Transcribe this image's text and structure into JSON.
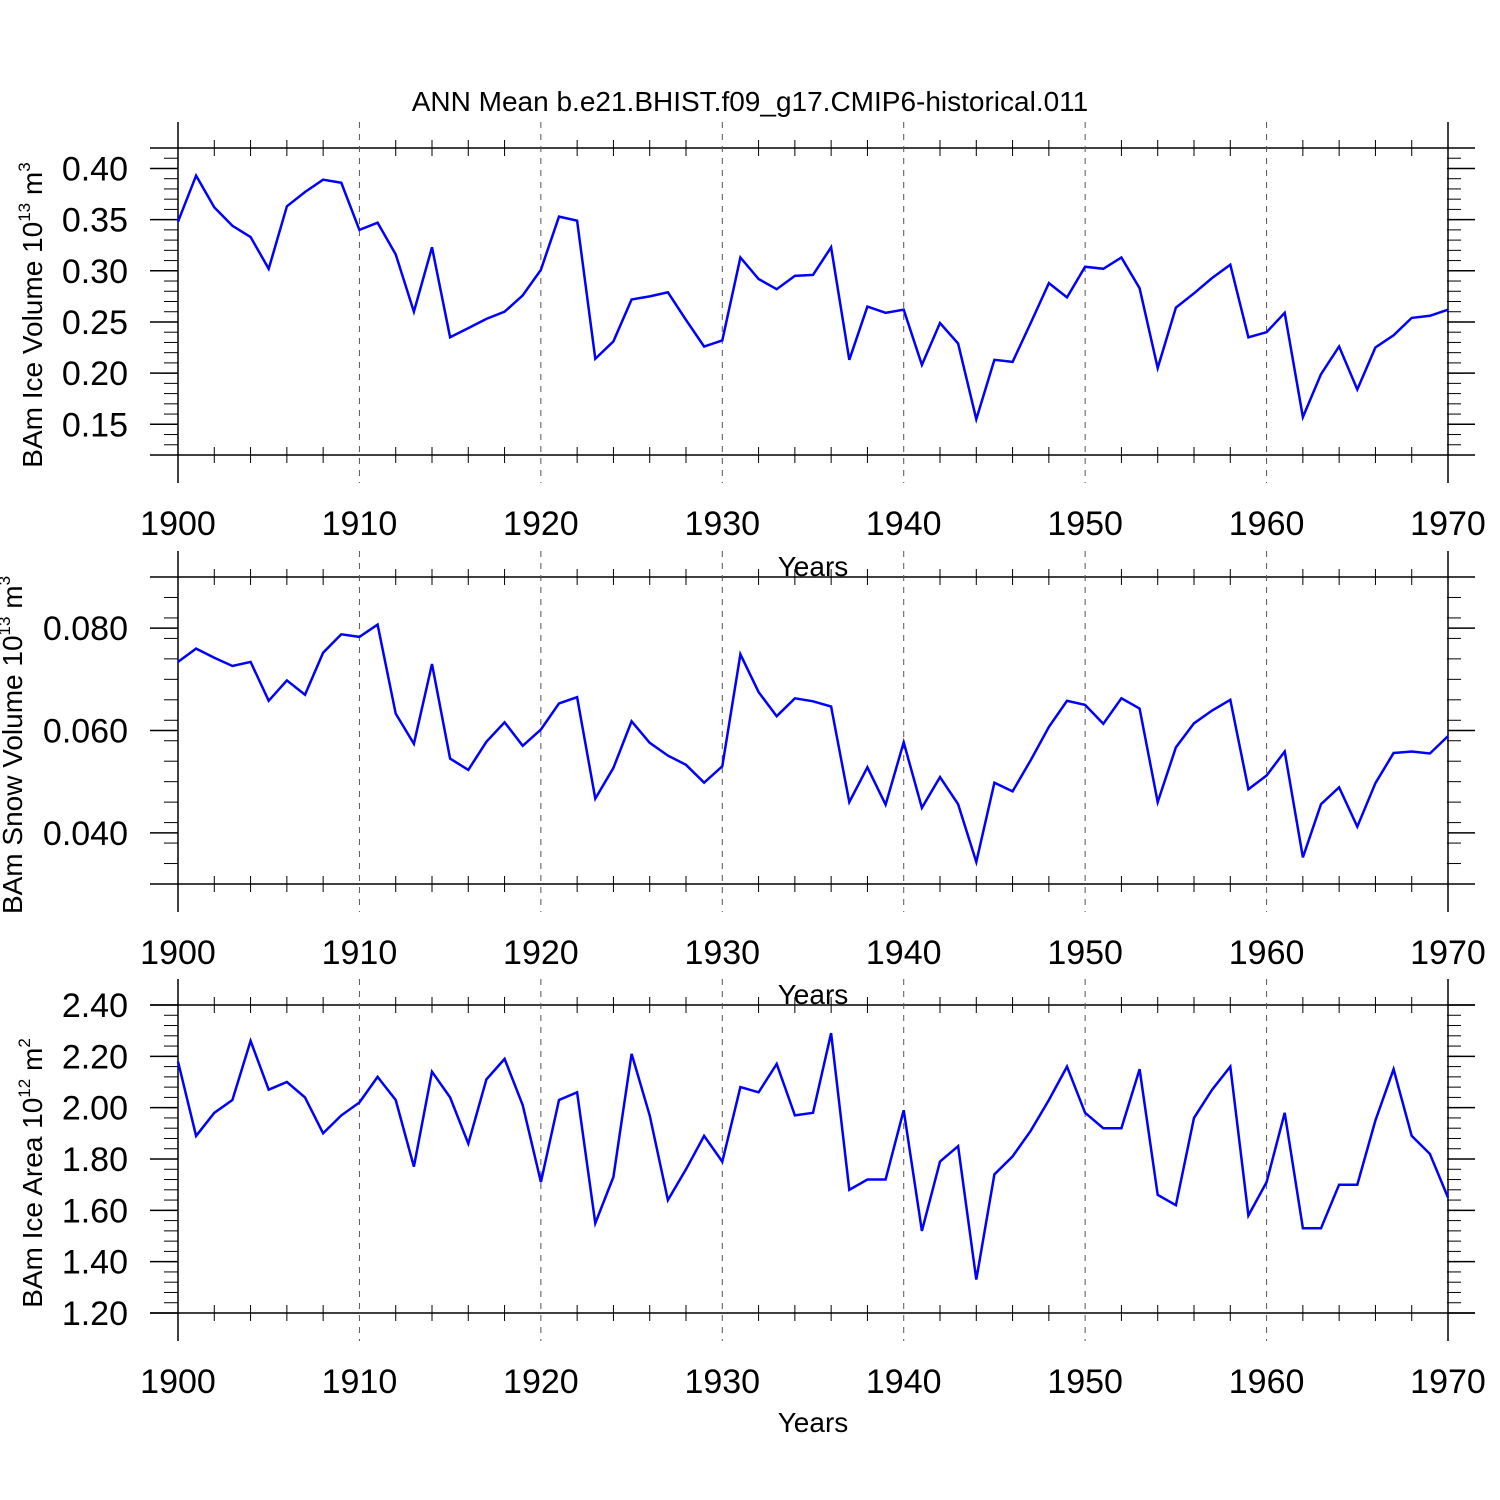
{
  "title": "ANN Mean b.e21.BHIST.f09_g17.CMIP6-historical.011",
  "colors": {
    "line": "#0000ff",
    "axis": "#000000",
    "grid": "#555555"
  },
  "chart_data": [
    {
      "type": "line",
      "ylabel": "BAm Ice Volume 10",
      "ylabel_exp": "13",
      "ylabel_unit": " m",
      "ylabel_unit_exp": "3",
      "xlabel": "Years",
      "xlim": [
        1900,
        1970
      ],
      "ylim": [
        0.12,
        0.42
      ],
      "yticks": [
        "0.15",
        "0.20",
        "0.25",
        "0.30",
        "0.35",
        "0.40"
      ],
      "xticks": [
        "1900",
        "1910",
        "1920",
        "1930",
        "1940",
        "1950",
        "1960",
        "1970"
      ],
      "grid": "dashed vertical lines at decades",
      "x": [
        1900,
        1901,
        1902,
        1903,
        1904,
        1905,
        1906,
        1907,
        1908,
        1909,
        1910,
        1911,
        1912,
        1913,
        1914,
        1915,
        1916,
        1917,
        1918,
        1919,
        1920,
        1921,
        1922,
        1923,
        1924,
        1925,
        1926,
        1927,
        1928,
        1929,
        1930,
        1931,
        1932,
        1933,
        1934,
        1935,
        1936,
        1937,
        1938,
        1939,
        1940,
        1941,
        1942,
        1943,
        1944,
        1945,
        1946,
        1947,
        1948,
        1949,
        1950,
        1951,
        1952,
        1953,
        1954,
        1955,
        1956,
        1957,
        1958,
        1959,
        1960,
        1961,
        1962,
        1963,
        1964,
        1965,
        1966,
        1967,
        1968,
        1969,
        1970
      ],
      "values": [
        0.348,
        0.393,
        0.362,
        0.344,
        0.333,
        0.302,
        0.363,
        0.377,
        0.389,
        0.386,
        0.34,
        0.347,
        0.316,
        0.26,
        0.323,
        0.235,
        0.244,
        0.253,
        0.26,
        0.276,
        0.301,
        0.353,
        0.349,
        0.214,
        0.231,
        0.272,
        0.275,
        0.279,
        0.252,
        0.226,
        0.232,
        0.313,
        0.292,
        0.282,
        0.295,
        0.296,
        0.323,
        0.213,
        0.265,
        0.259,
        0.262,
        0.208,
        0.249,
        0.229,
        0.155,
        0.213,
        0.211,
        0.249,
        0.288,
        0.274,
        0.304,
        0.302,
        0.313,
        0.283,
        0.205,
        0.264,
        0.278,
        0.293,
        0.306,
        0.235,
        0.24,
        0.259,
        0.157,
        0.199,
        0.226,
        0.184,
        0.225,
        0.237,
        0.254,
        0.256,
        0.262
      ]
    },
    {
      "type": "line",
      "ylabel": "BAm Snow Volume 10",
      "ylabel_exp": "13",
      "ylabel_unit": " m",
      "ylabel_unit_exp": "3",
      "xlabel": "Years",
      "xlim": [
        1900,
        1970
      ],
      "ylim": [
        0.03,
        0.09
      ],
      "yticks": [
        "0.040",
        "0.060",
        "0.080"
      ],
      "xticks": [
        "1900",
        "1910",
        "1920",
        "1930",
        "1940",
        "1950",
        "1960",
        "1970"
      ],
      "grid": "dashed vertical lines at decades",
      "x": [
        1900,
        1901,
        1902,
        1903,
        1904,
        1905,
        1906,
        1907,
        1908,
        1909,
        1910,
        1911,
        1912,
        1913,
        1914,
        1915,
        1916,
        1917,
        1918,
        1919,
        1920,
        1921,
        1922,
        1923,
        1924,
        1925,
        1926,
        1927,
        1928,
        1929,
        1930,
        1931,
        1932,
        1933,
        1934,
        1935,
        1936,
        1937,
        1938,
        1939,
        1940,
        1941,
        1942,
        1943,
        1944,
        1945,
        1946,
        1947,
        1948,
        1949,
        1950,
        1951,
        1952,
        1953,
        1954,
        1955,
        1956,
        1957,
        1958,
        1959,
        1960,
        1961,
        1962,
        1963,
        1964,
        1965,
        1966,
        1967,
        1968,
        1969,
        1970
      ],
      "values": [
        0.0734,
        0.076,
        0.0742,
        0.0726,
        0.0734,
        0.0658,
        0.0698,
        0.067,
        0.0752,
        0.0788,
        0.0783,
        0.0807,
        0.0633,
        0.0574,
        0.073,
        0.0545,
        0.0523,
        0.0578,
        0.0616,
        0.057,
        0.0602,
        0.0653,
        0.0665,
        0.0467,
        0.0527,
        0.0618,
        0.0576,
        0.0551,
        0.0533,
        0.0498,
        0.053,
        0.0749,
        0.0675,
        0.0628,
        0.0663,
        0.0657,
        0.0647,
        0.046,
        0.0528,
        0.0455,
        0.0577,
        0.0449,
        0.0509,
        0.0456,
        0.0343,
        0.0498,
        0.0481,
        0.0542,
        0.0607,
        0.0658,
        0.065,
        0.0613,
        0.0663,
        0.0643,
        0.046,
        0.0567,
        0.0614,
        0.0639,
        0.066,
        0.0485,
        0.0512,
        0.0559,
        0.0352,
        0.0456,
        0.0489,
        0.0412,
        0.0497,
        0.0556,
        0.0559,
        0.0555,
        0.0589
      ]
    },
    {
      "type": "line",
      "ylabel": "BAm Ice Area 10",
      "ylabel_exp": "12",
      "ylabel_unit": " m",
      "ylabel_unit_exp": "2",
      "xlabel": "Years",
      "xlim": [
        1900,
        1970
      ],
      "ylim": [
        1.2,
        2.4
      ],
      "yticks": [
        "1.20",
        "1.40",
        "1.60",
        "1.80",
        "2.00",
        "2.20",
        "2.40"
      ],
      "xticks": [
        "1900",
        "1910",
        "1920",
        "1930",
        "1940",
        "1950",
        "1960",
        "1970"
      ],
      "grid": "dashed vertical lines at decades",
      "x": [
        1900,
        1901,
        1902,
        1903,
        1904,
        1905,
        1906,
        1907,
        1908,
        1909,
        1910,
        1911,
        1912,
        1913,
        1914,
        1915,
        1916,
        1917,
        1918,
        1919,
        1920,
        1921,
        1922,
        1923,
        1924,
        1925,
        1926,
        1927,
        1928,
        1929,
        1930,
        1931,
        1932,
        1933,
        1934,
        1935,
        1936,
        1937,
        1938,
        1939,
        1940,
        1941,
        1942,
        1943,
        1944,
        1945,
        1946,
        1947,
        1948,
        1949,
        1950,
        1951,
        1952,
        1953,
        1954,
        1955,
        1956,
        1957,
        1958,
        1959,
        1960,
        1961,
        1962,
        1963,
        1964,
        1965,
        1966,
        1967,
        1968,
        1969,
        1970
      ],
      "values": [
        2.18,
        1.89,
        1.98,
        2.03,
        2.26,
        2.07,
        2.1,
        2.04,
        1.9,
        1.97,
        2.02,
        2.12,
        2.03,
        1.77,
        2.14,
        2.04,
        1.86,
        2.11,
        2.19,
        2.01,
        1.71,
        2.03,
        2.06,
        1.55,
        1.73,
        2.21,
        1.97,
        1.64,
        1.76,
        1.89,
        1.79,
        2.08,
        2.06,
        2.17,
        1.97,
        1.98,
        2.29,
        1.68,
        1.72,
        1.72,
        1.99,
        1.52,
        1.79,
        1.85,
        1.33,
        1.74,
        1.81,
        1.91,
        2.03,
        2.16,
        1.98,
        1.92,
        1.92,
        2.15,
        1.66,
        1.62,
        1.96,
        2.07,
        2.16,
        1.58,
        1.71,
        1.98,
        1.53,
        1.53,
        1.7,
        1.7,
        1.95,
        2.15,
        1.89,
        1.82,
        1.65
      ]
    }
  ]
}
